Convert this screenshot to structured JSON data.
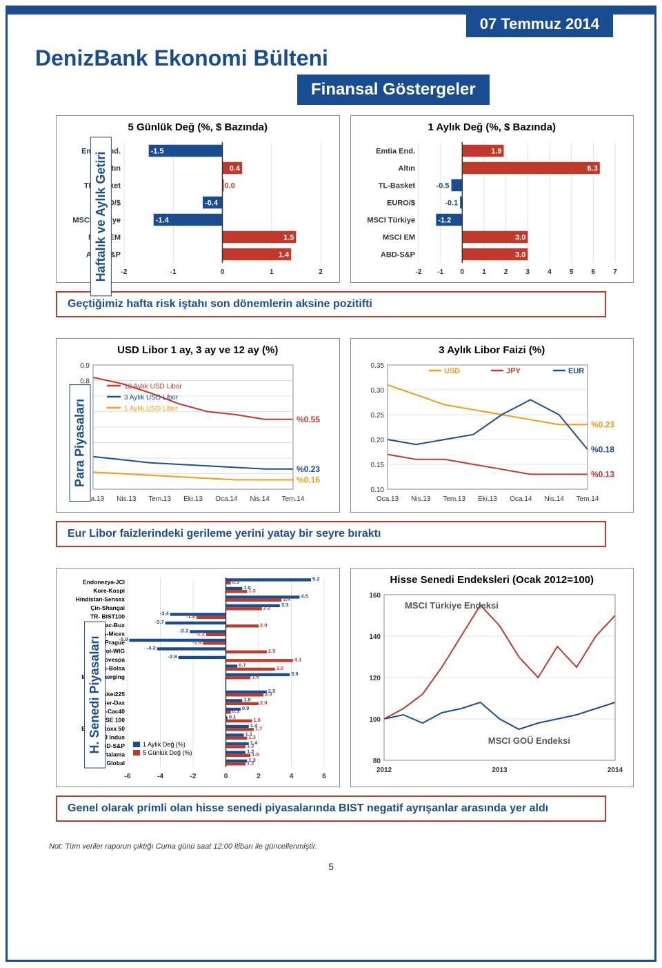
{
  "date": "07 Temmuz 2014",
  "title": "DenizBank Ekonomi Bülteni",
  "subtitle": "Finansal Göstergeler",
  "sections": {
    "s1": {
      "label": "Haftalık ve Aylık Getiri",
      "caption": "Geçtiğimiz hafta risk iştahı son dönemlerin aksine pozitifti",
      "chart1": {
        "title": "5 Günlük Değ (%, $ Bazında)",
        "categories": [
          "Emtia End.",
          "Altın",
          "TL-Basket",
          "EURO/$",
          "MSCI Türkiye",
          "MSCI EM",
          "ABD-S&P"
        ],
        "values": [
          -1.5,
          0.4,
          0.0,
          -0.4,
          -1.4,
          1.5,
          1.4
        ],
        "xlim": [
          -2,
          2
        ],
        "xticks": [
          -2,
          -1,
          0,
          1,
          2
        ],
        "neg_color": "#1a4d8f",
        "pos_color": "#c0392b",
        "bg": "#fff",
        "grid": "#e0e0e0",
        "title_fontsize": 15,
        "label_fontsize": 11
      },
      "chart2": {
        "title": "1 Aylık Değ (%, $ Bazında)",
        "categories": [
          "Emtia End.",
          "Altın",
          "TL-Basket",
          "EURO/$",
          "MSCI Türkiye",
          "MSCI EM",
          "ABD-S&P"
        ],
        "values": [
          1.9,
          6.3,
          -0.5,
          -0.1,
          -1.2,
          3.0,
          3.0
        ],
        "xlim": [
          -2,
          7
        ],
        "xticks": [
          -2,
          -1,
          0,
          1,
          2,
          3,
          4,
          5,
          6,
          7
        ],
        "neg_color": "#1a4d8f",
        "pos_color": "#c0392b",
        "bg": "#fff",
        "grid": "#e0e0e0",
        "title_fontsize": 15,
        "label_fontsize": 11
      }
    },
    "s2": {
      "label": "Para Piyasaları",
      "caption": "Eur Libor faizlerindeki gerileme yerini yatay bir seyre bıraktı",
      "chart1": {
        "title": "USD Libor 1 ay, 3 ay ve 12 ay (%)",
        "xticks": [
          "Oca.13",
          "Nis.13",
          "Tem.13",
          "Eki.13",
          "Oca.14",
          "Nis.14",
          "Tem.14"
        ],
        "ylim": [
          0.1,
          0.9
        ],
        "yticks": [
          0.1,
          0.2,
          0.3,
          0.4,
          0.5,
          0.6,
          0.7,
          0.8,
          0.9
        ],
        "series": [
          {
            "name": "12 Aylık USD Libor",
            "color": "#c0392b",
            "end": "%0.55",
            "y": [
              0.82,
              0.78,
              0.72,
              0.65,
              0.6,
              0.58,
              0.55,
              0.55
            ]
          },
          {
            "name": "3 Aylık USD Libor",
            "color": "#1a4d8f",
            "end": "%0.23",
            "y": [
              0.31,
              0.29,
              0.27,
              0.26,
              0.25,
              0.24,
              0.23,
              0.23
            ]
          },
          {
            "name": "1 Aylık USD Libor",
            "color": "#f39c12",
            "end": "%0.16",
            "y": [
              0.21,
              0.2,
              0.19,
              0.18,
              0.17,
              0.16,
              0.16,
              0.16
            ]
          }
        ],
        "legend_pos": "left",
        "bg": "#fff",
        "grid": "#e0e0e0",
        "title_fontsize": 15
      },
      "chart2": {
        "title": "3 Aylık Libor Faizi (%)",
        "xticks": [
          "Oca.13",
          "Nis.13",
          "Tem.13",
          "Eki.13",
          "Oca.14",
          "Nis.14",
          "Tem.14"
        ],
        "ylim": [
          0.1,
          0.35
        ],
        "yticks": [
          0.1,
          0.15,
          0.2,
          0.25,
          0.3,
          0.35
        ],
        "series": [
          {
            "name": "USD",
            "color": "#f39c12",
            "end": "%0.23",
            "y": [
              0.31,
              0.29,
              0.27,
              0.26,
              0.25,
              0.24,
              0.23,
              0.23
            ]
          },
          {
            "name": "JPY",
            "color": "#c0392b",
            "end": "%0.13",
            "y": [
              0.17,
              0.16,
              0.16,
              0.15,
              0.14,
              0.13,
              0.13,
              0.13
            ]
          },
          {
            "name": "EUR",
            "color": "#1a4d8f",
            "end": "%0.18",
            "y": [
              0.2,
              0.19,
              0.2,
              0.21,
              0.25,
              0.28,
              0.25,
              0.18
            ]
          }
        ],
        "legend_pos": "top",
        "bg": "#fff",
        "grid": "#e0e0e0",
        "title_fontsize": 15
      }
    },
    "s3": {
      "label": "H. Senedi Piyasaları",
      "caption": "Genel olarak primli olan hisse senedi piyasalarında BIST negatif ayrışanlar arasında yer aldı",
      "chart1": {
        "categories": [
          "Endonezya-JCI",
          "Kore-Kospi",
          "Hindistan-Sensex",
          "Çin-Shangai",
          "TR- BIST100",
          "Mac-Bux",
          "Rus-Micex",
          "Cz-Prague",
          "Pol-WIG",
          "Br-Bovespa",
          "Meks-Bolsa",
          "MSCI Emerging",
          "",
          "Jp-Nikkei225",
          "Ger-Dax",
          "Fr-Cac40",
          "UK-FTSE 100",
          "EU-DJ Stoxx 50",
          "ABD-DJ Indus",
          "ABD-S&P",
          "G-7 Ortalama",
          "MSCI Global"
        ],
        "series": [
          {
            "name": "1 Aylık Değ (%)",
            "color": "#1a4d8f",
            "values": [
              5.2,
              1.0,
              4.5,
              3.3,
              -3.4,
              -3.7,
              -2.2,
              -5.9,
              -4.2,
              -2.9,
              0.7,
              3.9,
              null,
              2.5,
              1.0,
              0.9,
              0.1,
              1.4,
              1.1,
              1.4,
              1.2,
              1.3
            ]
          },
          {
            "name": "5 Günlük Değ (%)",
            "color": "#c0392b",
            "values": [
              0.3,
              1.3,
              3.4,
              2.2,
              -1.8,
              2.0,
              -1.2,
              -1.4,
              2.5,
              4.1,
              3.0,
              1.5,
              null,
              2.3,
              2.0,
              0.3,
              1.6,
              1.7,
              1.3,
              1.2,
              1.5,
              1.2
            ]
          }
        ],
        "xlim": [
          -6,
          6
        ],
        "xticks": [
          -6,
          -4,
          -2,
          0,
          2,
          4,
          6
        ],
        "bg": "#fff",
        "grid": "#e0e0e0",
        "label_fontsize": 9
      },
      "chart2": {
        "title": "Hisse Senedi Endeksleri (Ocak 2012=100)",
        "xticks": [
          "2012",
          "2013",
          "2014"
        ],
        "ylim": [
          80,
          160
        ],
        "yticks": [
          80,
          100,
          120,
          140,
          160
        ],
        "series": [
          {
            "name": "MSCI Türkiye Endeksi",
            "color": "#c0392b",
            "y": [
              100,
              105,
              112,
              125,
              140,
              155,
              145,
              130,
              120,
              135,
              125,
              140,
              150
            ]
          },
          {
            "name": "MSCI GOÜ Endeksi",
            "color": "#1a4d8f",
            "y": [
              100,
              102,
              98,
              103,
              105,
              108,
              100,
              95,
              98,
              100,
              102,
              105,
              108
            ]
          }
        ],
        "bg": "#fff",
        "grid": "#e0e0e0",
        "title_fontsize": 14
      }
    }
  },
  "footer_note": "Not: Tüm veriler raporun çıktığı Cuma günü saat 12:00 itibarı ile güncellenmiştir.",
  "page_number": "5"
}
